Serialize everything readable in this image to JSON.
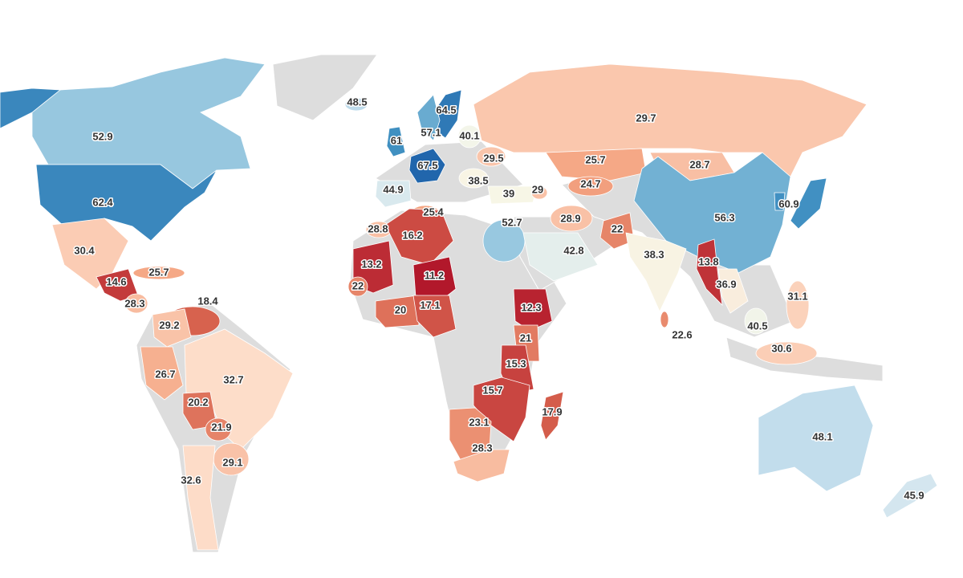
{
  "map": {
    "values": [
      52.9,
      62.4,
      48.5,
      64.5,
      57.1,
      40.1,
      61,
      29.5,
      67.5,
      29.7,
      25.7,
      28.7,
      38.5,
      24.7,
      44.9,
      39,
      29,
      56.3,
      60.9,
      25.4,
      28.8,
      16.2,
      52.7,
      28.9,
      22,
      42.8,
      38.3,
      13.8,
      30.4,
      13.2,
      11.2,
      25.7,
      14.6,
      36.9,
      22,
      28.3,
      18.4,
      20,
      17.1,
      12.3,
      31.1,
      29.2,
      40.5,
      22.6,
      21,
      30.6,
      15.3,
      26.7,
      32.7,
      15.7,
      20.2,
      17.9,
      21.9,
      23.1,
      48.1,
      28.3,
      29.1,
      32.6,
      45.9
    ],
    "color_stops": [
      "#b2182b",
      "#d6604d",
      "#f4a582",
      "#fddbc7",
      "#f7f7e8",
      "#d1e5f0",
      "#92c5de",
      "#4393c3",
      "#2166ac"
    ],
    "no_data_color": "#dddddd"
  }
}
